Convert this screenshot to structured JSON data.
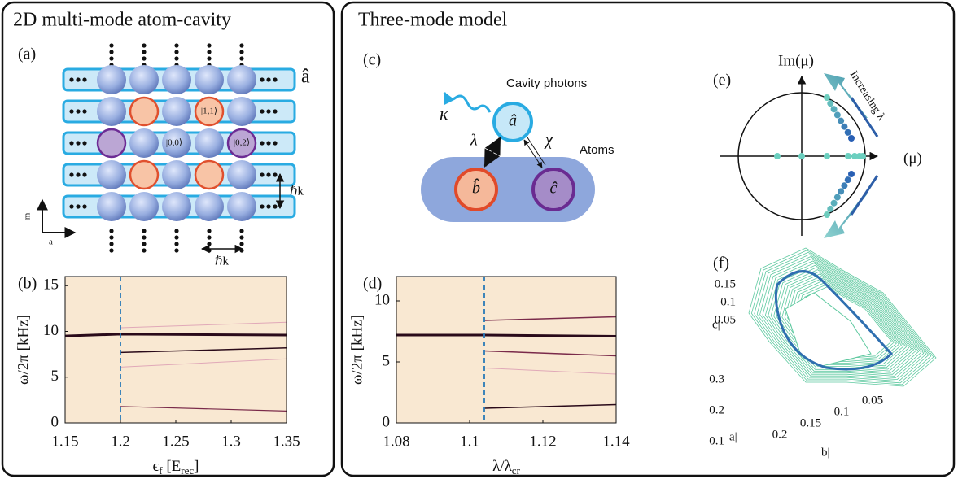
{
  "left_panel": {
    "title": "2D multi-mode atom-cavity"
  },
  "right_panel": {
    "title": "Three-mode model"
  },
  "panel_a": {
    "label": "(a)",
    "mode": "â",
    "state_11": "|1,1⟩",
    "state_00": "|0,0⟩",
    "state_02": "|0,2⟩",
    "hk_v": "ℏk",
    "hk_h": "ℏk",
    "axis_m": "m",
    "axis_a": "a"
  },
  "panel_c": {
    "label": "(c)",
    "kappa": "κ",
    "cavity": "Cavity photons",
    "mode_a": "â",
    "lambda": "λ",
    "chi": "χ",
    "atoms": "Atoms",
    "mode_b": "b̂",
    "mode_c": "ĉ"
  },
  "panel_e": {
    "label": "(e)",
    "im_axis": "Im(μ)",
    "re_axis": "(μ)",
    "arrow_label": "Increasing λ"
  },
  "panel_f": {
    "label": "(f)",
    "zlabel": "|c|",
    "zticks": [
      0.15,
      0.1,
      0.05
    ],
    "alabel": "|a|",
    "aticks": [
      0.3,
      0.2,
      0.1
    ],
    "blabel": "|b|",
    "bticks": [
      0.2,
      0.15,
      0.1,
      0.05
    ]
  },
  "chart_data": [
    {
      "type": "line",
      "label": "(b)",
      "xlabel": [
        "ϵ",
        "f",
        " [E",
        "rec",
        "]"
      ],
      "ylabel": "ω/2π [kHz]",
      "xlim": [
        1.15,
        1.35
      ],
      "xticks": [
        1.15,
        1.2,
        1.25,
        1.3,
        1.35
      ],
      "ylim": [
        0,
        16
      ],
      "yticks": [
        0,
        5,
        10,
        15
      ],
      "threshold": 1.2,
      "background": "#f9e8d2",
      "x": [
        1.15,
        1.2,
        1.35
      ],
      "series": [
        {
          "color": "#2a0a1a",
          "line_width": 3,
          "values": [
            9.5,
            9.7,
            9.6
          ]
        },
        {
          "color": "#2a0a1a",
          "line_width": 1.5,
          "values": [
            null,
            7.7,
            8.2
          ]
        },
        {
          "color": "#7a2a4a",
          "line_width": 1.2,
          "values": [
            null,
            1.8,
            1.3
          ]
        },
        {
          "color": "#e0a8b8",
          "line_width": 1,
          "values": [
            null,
            6.1,
            7.0
          ]
        },
        {
          "color": "#e0a8b8",
          "line_width": 1,
          "values": [
            null,
            10.4,
            11.0
          ]
        }
      ]
    },
    {
      "type": "line",
      "label": "(d)",
      "xlabel": [
        "λ/λ",
        "cr"
      ],
      "ylabel": "ω/2π [kHz]",
      "xlim": [
        1.08,
        1.14
      ],
      "xticks": [
        1.08,
        1.1,
        1.12,
        1.14
      ],
      "ylim": [
        0,
        12
      ],
      "yticks": [
        0,
        5,
        10
      ],
      "threshold": 1.104,
      "background": "#f9e8d2",
      "x": [
        1.08,
        1.104,
        1.14
      ],
      "series": [
        {
          "color": "#2a0a1a",
          "line_width": 3,
          "values": [
            7.2,
            7.2,
            7.1
          ]
        },
        {
          "color": "#7a2a4a",
          "line_width": 1.5,
          "values": [
            null,
            8.4,
            8.7
          ]
        },
        {
          "color": "#7a2a4a",
          "line_width": 1.5,
          "values": [
            null,
            5.9,
            5.5
          ]
        },
        {
          "color": "#2a0a1a",
          "line_width": 1.5,
          "values": [
            null,
            1.2,
            1.5
          ]
        },
        {
          "color": "#e0a8b8",
          "line_width": 1,
          "values": [
            null,
            4.5,
            4.0
          ]
        }
      ]
    }
  ]
}
